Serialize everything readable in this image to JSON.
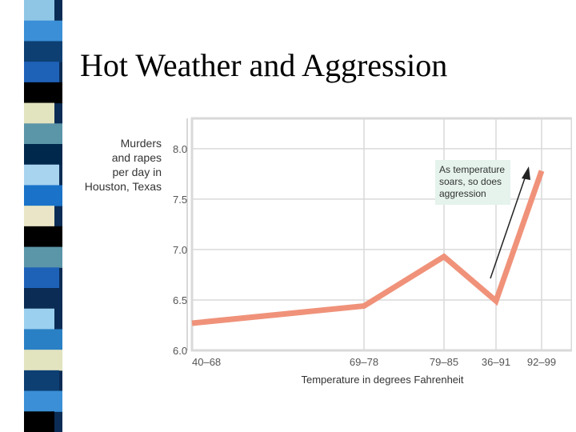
{
  "slide": {
    "title": "Hot Weather and Aggression",
    "stripe_colors": [
      "#8fc6e6",
      "#3a8fd6",
      "#0d3f73",
      "#1e62b8",
      "#000000",
      "#e2e3bf",
      "#5b95a8",
      "#00284d",
      "#a8d4f0",
      "#1a73c8",
      "#e9e5c6",
      "#000000",
      "#5b95a8",
      "#1e62b8",
      "#0a2c55",
      "#9bd0ee",
      "#2a80c5",
      "#e2e3bf",
      "#0d3f73",
      "#3a8fd6",
      "#000000"
    ]
  },
  "chart_data": {
    "type": "line",
    "ylabel_lines": [
      "Murders",
      "and rapes",
      "per day in",
      "Houston, Texas"
    ],
    "xlabel": "Temperature in degrees Fahrenheit",
    "categories": [
      "40–68",
      "69–78",
      "79–85",
      "36–91",
      "92–99"
    ],
    "values": [
      6.27,
      6.44,
      6.93,
      6.49,
      7.78
    ],
    "yticks": [
      "6.0",
      "6.5",
      "7.0",
      "7.5",
      "8.0"
    ],
    "ylim": [
      6.0,
      8.3
    ],
    "grid": true,
    "annotation_lines": [
      "As temperature",
      "soars, so does",
      "aggression"
    ],
    "colors": {
      "line": "#f0927a",
      "grid": "#d9d9d9",
      "annotation_bg": "#e5f3ec",
      "axis_text": "#555555"
    }
  }
}
